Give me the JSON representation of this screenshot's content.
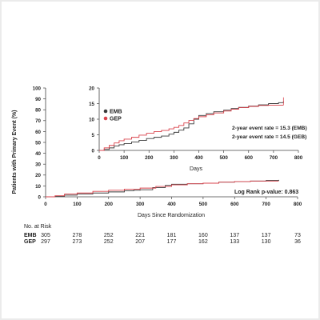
{
  "chart_data": [
    {
      "type": "line",
      "panel": "main",
      "ylabel": "Patients with Primary Event (%)",
      "xlabel": "Days Since Randomization",
      "xlim": [
        0,
        800
      ],
      "ylim": [
        0,
        100
      ],
      "x_ticks": [
        "0",
        "100",
        "200",
        "300",
        "400",
        "500",
        "600",
        "700",
        "800"
      ],
      "y_ticks": [
        "0",
        "10",
        "20",
        "30",
        "40",
        "50",
        "60",
        "70",
        "80",
        "90",
        "100"
      ],
      "annotation": "Log Rank p-value: 0.863",
      "series": [
        {
          "name": "EMB",
          "color": "#3a3a3a",
          "x": [
            0,
            30,
            60,
            100,
            150,
            200,
            250,
            280,
            300,
            340,
            380,
            400,
            450,
            500,
            550,
            600,
            650,
            700,
            740
          ],
          "y": [
            0,
            0.5,
            1.5,
            2.5,
            3.5,
            4.5,
            5.5,
            6.0,
            6.5,
            8.5,
            10.5,
            11.5,
            12.0,
            12.5,
            13.5,
            14.0,
            14.5,
            15.0,
            15.5
          ]
        },
        {
          "name": "GEP",
          "color": "#d9434c",
          "x": [
            0,
            30,
            60,
            100,
            150,
            200,
            250,
            300,
            350,
            400,
            450,
            500,
            550,
            600,
            650,
            700,
            740
          ],
          "y": [
            0,
            1.0,
            2.5,
            3.5,
            5.0,
            6.0,
            7.0,
            8.0,
            9.5,
            11.0,
            12.0,
            12.5,
            13.5,
            14.0,
            14.5,
            14.5,
            14.5
          ]
        }
      ]
    },
    {
      "type": "line",
      "panel": "inset",
      "xlabel": "Days",
      "xlim": [
        0,
        800
      ],
      "ylim": [
        0,
        20
      ],
      "x_ticks": [
        "0",
        "100",
        "200",
        "300",
        "400",
        "500",
        "600",
        "700",
        "800"
      ],
      "y_ticks": [
        "0",
        "5",
        "10",
        "15",
        "20"
      ],
      "legend": [
        "EMB",
        "GEP"
      ],
      "legend_position": "top-left",
      "annotations": [
        "2-year event rate = 15.3 (EMB)",
        "2-year event rate = 14.5 (GEB)"
      ],
      "series": [
        {
          "name": "EMB",
          "color": "#3a3a3a",
          "x": [
            0,
            20,
            40,
            60,
            80,
            100,
            130,
            160,
            190,
            220,
            250,
            280,
            300,
            320,
            340,
            360,
            380,
            400,
            430,
            460,
            500,
            530,
            560,
            600,
            640,
            680,
            720,
            740
          ],
          "y": [
            0,
            0.3,
            0.8,
            1.4,
            1.8,
            2.2,
            2.7,
            3.2,
            3.8,
            4.2,
            4.6,
            5.2,
            5.8,
            6.5,
            7.2,
            8.5,
            10.0,
            11.2,
            11.8,
            12.4,
            12.9,
            13.4,
            13.8,
            14.2,
            14.6,
            15.0,
            15.3,
            15.8
          ]
        },
        {
          "name": "GEP",
          "color": "#d9434c",
          "x": [
            0,
            20,
            40,
            60,
            80,
            100,
            130,
            160,
            190,
            220,
            250,
            280,
            300,
            320,
            340,
            360,
            380,
            400,
            430,
            460,
            500,
            530,
            560,
            600,
            640,
            680,
            720,
            740
          ],
          "y": [
            0,
            0.8,
            1.6,
            2.4,
            3.1,
            3.6,
            4.2,
            4.9,
            5.5,
            6.0,
            6.4,
            6.9,
            7.4,
            8.0,
            8.8,
            9.6,
            10.2,
            10.8,
            11.4,
            12.0,
            12.6,
            13.2,
            13.7,
            14.1,
            14.4,
            14.5,
            14.5,
            14.5
          ]
        }
      ]
    }
  ],
  "at_risk": {
    "title": "No. at Risk",
    "rows": [
      {
        "label": "EMB",
        "values": [
          "305",
          "278",
          "252",
          "221",
          "181",
          "160",
          "137",
          "137",
          "73"
        ]
      },
      {
        "label": "GEP",
        "values": [
          "297",
          "273",
          "252",
          "207",
          "177",
          "162",
          "133",
          "130",
          "36"
        ]
      }
    ]
  }
}
